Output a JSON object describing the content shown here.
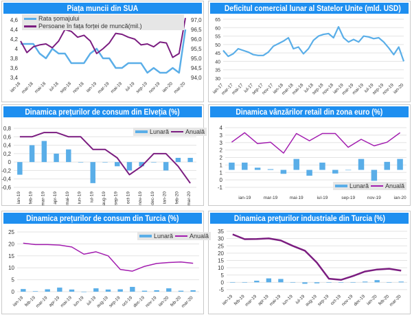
{
  "colors": {
    "title_bg": "#1e8ff0",
    "blue": "#5aaee8",
    "purple": "#7b1d80",
    "magenta": "#a21caf"
  },
  "chart_data": [
    {
      "type": "line",
      "title": "Piața muncii din SUA",
      "x_labels": [
        "ian-18",
        "mar-18",
        "mai-18",
        "iul-18",
        "sep-18",
        "nov-18",
        "ian-19",
        "mar-19",
        "mai-19",
        "iul-19",
        "sep-19",
        "nov-19",
        "ian-20",
        "mar-20"
      ],
      "y_ticks": [
        "4,6",
        "4,4",
        "4,2",
        "4",
        "3,8",
        "3,6",
        "3,4"
      ],
      "ylim": [
        3.4,
        4.6
      ],
      "y2_ticks": [
        "97,0",
        "96,5",
        "96,0",
        "95,5",
        "95,0",
        "94,5",
        "94,0"
      ],
      "y2lim": [
        94.0,
        97.0
      ],
      "legend": "top",
      "series": [
        {
          "name": "Rata șomajului",
          "axis": "left",
          "values": [
            4.1,
            4.1,
            4.1,
            3.9,
            3.8,
            4.0,
            3.9,
            3.9,
            3.7,
            3.7,
            3.7,
            3.9,
            4.0,
            3.8,
            3.8,
            3.6,
            3.6,
            3.7,
            3.7,
            3.7,
            3.5,
            3.6,
            3.5,
            3.5,
            3.6,
            3.5,
            4.4
          ]
        },
        {
          "name": "Persoane în fața forței de muncă(mil.)",
          "axis": "right",
          "values": [
            95.9,
            95.3,
            95.6,
            95.7,
            95.75,
            95.55,
            95.9,
            96.5,
            96.4,
            96.1,
            96.2,
            95.9,
            95.25,
            95.5,
            95.8,
            96.3,
            96.25,
            96.1,
            96.0,
            95.7,
            95.75,
            95.6,
            95.85,
            95.8,
            95.05,
            95.25,
            97.1
          ]
        }
      ]
    },
    {
      "type": "line",
      "title": "Deficitul comercial lunar al Statelor Unite (mld. USD)",
      "x_labels": [
        "ian-17",
        "mar-17",
        "mai-17",
        "iul-17",
        "sep-17",
        "nov-17",
        "ian-18",
        "mar-18",
        "mai-18",
        "iul-18",
        "sep-18",
        "nov-18",
        "ian-19",
        "mar-19",
        "mai-19",
        "iul-19",
        "sep-19",
        "nov-19",
        "ian-20"
      ],
      "y_ticks": [
        "65",
        "60",
        "55",
        "50",
        "45",
        "40",
        "35",
        "30"
      ],
      "ylim": [
        30,
        65
      ],
      "grid": true,
      "series": [
        {
          "values": [
            46.5,
            43,
            44.5,
            47.5,
            46.5,
            45.5,
            44,
            43.5,
            43.5,
            45.5,
            49,
            50.5,
            52,
            54,
            47.5,
            48.5,
            44.5,
            47.5,
            52.5,
            55,
            56,
            56.5,
            54,
            60.5,
            54,
            51.5,
            53,
            51.5,
            55,
            54.5,
            53.5,
            54,
            51.5,
            48,
            44,
            48.5,
            40
          ]
        }
      ]
    },
    {
      "type": "bar+line",
      "title": "Dinamica prețurilor de consum din Elveția (%)",
      "x_labels": [
        "ian-19",
        "feb-19",
        "mar-19",
        "apr-19",
        "mai-19",
        "iun-19",
        "iul-19",
        "aug-19",
        "sep-19",
        "oct-19",
        "nov-19",
        "dec-19",
        "ian-20",
        "feb-20",
        "mar-20"
      ],
      "y_ticks": [
        "0,8",
        "0,6",
        "0,4",
        "0,2",
        "0",
        "-0,2",
        "-0,4",
        "-0,6"
      ],
      "ylim": [
        -0.6,
        0.8
      ],
      "grid": true,
      "legend": "top-right",
      "series": [
        {
          "name": "Lunară",
          "type": "bar",
          "values": [
            -0.3,
            0.4,
            0.5,
            0.2,
            0.3,
            0,
            -0.5,
            0,
            -0.1,
            -0.2,
            -0.1,
            0,
            -0.2,
            0.1,
            0.1
          ]
        },
        {
          "name": "Anuală",
          "type": "line",
          "values": [
            0.6,
            0.6,
            0.7,
            0.7,
            0.6,
            0.6,
            0.3,
            0.3,
            0.1,
            -0.3,
            -0.1,
            0.2,
            0.2,
            -0.1,
            -0.5
          ]
        }
      ]
    },
    {
      "type": "bar+line",
      "title": "Dinamica vânzărilor retail din zona euro (%)",
      "x_labels": [
        "ian-19",
        "mar-19",
        "mai-19",
        "iul-19",
        "sep-19",
        "nov-19",
        "ian-20"
      ],
      "y_ticks": [
        "4",
        "3",
        "3",
        "2",
        "2",
        "1",
        "1",
        "0",
        "-1"
      ],
      "ylim": [
        -1.2,
        2.9
      ],
      "grid": true,
      "legend": "bottom-right",
      "series": [
        {
          "name": "Lunară",
          "type": "bar",
          "values": [
            0.5,
            0.5,
            0.15,
            0.05,
            -0.27,
            0.75,
            -0.4,
            0.5,
            -0.25,
            0,
            0.75,
            -0.75,
            0.55,
            0.75
          ]
        },
        {
          "name": "Anuală",
          "type": "line",
          "values": [
            1.9,
            2.55,
            1.8,
            1.9,
            1.15,
            2.5,
            2.0,
            2.5,
            2.5,
            1.55,
            2.1,
            1.65,
            1.9,
            2.55
          ]
        }
      ]
    },
    {
      "type": "bar+line",
      "title": "Dinamica prețurilor de consum din Turcia (%)",
      "x_labels": [
        "ian-19",
        "feb-19",
        "mar-19",
        "apr-19",
        "mai-19",
        "iun-19",
        "iul-19",
        "aug-19",
        "sep-19",
        "oct-19",
        "dec-19",
        "nov-19",
        "ian-20",
        "feb-20",
        "mar-20"
      ],
      "y_ticks": [
        "25",
        "20",
        "15",
        "10",
        "5",
        "0"
      ],
      "ylim": [
        0,
        25
      ],
      "grid": true,
      "legend": "top-right",
      "series": [
        {
          "name": "Lunară",
          "type": "bar",
          "values": [
            1.1,
            0.2,
            1.0,
            1.7,
            0.9,
            0,
            1.4,
            0.9,
            1.0,
            2.0,
            0.4,
            0.6,
            1.4,
            0.4,
            0.6
          ]
        },
        {
          "name": "Anuală",
          "type": "line",
          "values": [
            20.3,
            19.7,
            19.7,
            19.5,
            18.7,
            15.7,
            16.7,
            15.0,
            9.3,
            8.6,
            10.6,
            11.8,
            12.2,
            12.4,
            11.9
          ]
        }
      ]
    },
    {
      "type": "bar+line",
      "title": "Dinamica prețurilor industriale din Turcia (%)",
      "x_labels": [
        "ian-19",
        "feb-19",
        "mar-19",
        "apr-19",
        "mai-19",
        "iun-19",
        "iul-19",
        "aug-19",
        "sep-19",
        "oct-19",
        "nov-19",
        "dec-19",
        "ian-20",
        "feb-20",
        "mar-20"
      ],
      "y_ticks": [
        "35",
        "30",
        "25",
        "20",
        "15",
        "10",
        "5",
        "0",
        "-5"
      ],
      "ylim": [
        -5,
        35
      ],
      "grid": true,
      "series": [
        {
          "type": "bar",
          "values": [
            -0.1,
            0,
            1.1,
            2.7,
            2.3,
            -0.1,
            -1.0,
            -0.7,
            0,
            0,
            0,
            0.5,
            1.5,
            -0.2,
            0.5
          ]
        },
        {
          "type": "line",
          "values": [
            32.9,
            29.6,
            29.7,
            30.1,
            28.7,
            25.0,
            21.7,
            13.5,
            2.5,
            1.7,
            4.3,
            7.4,
            8.8,
            9.3,
            8.0
          ]
        }
      ]
    }
  ]
}
